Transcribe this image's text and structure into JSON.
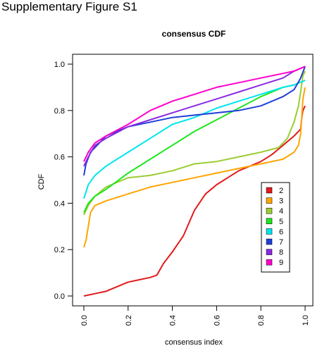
{
  "figure_label": "Supplementary Figure S1",
  "chart_data": {
    "type": "line",
    "title": "consensus CDF",
    "xlabel": "consensus index",
    "ylabel": "CDF",
    "xlim": [
      0.0,
      1.0
    ],
    "ylim": [
      0.0,
      1.0
    ],
    "x_ticks": [
      "0.0",
      "0.2",
      "0.4",
      "0.6",
      "0.8",
      "1.0"
    ],
    "y_ticks": [
      "0.0",
      "0.2",
      "0.4",
      "0.6",
      "0.8",
      "1.0"
    ],
    "grid": false,
    "legend_position": "right",
    "series": [
      {
        "name": "2",
        "color": "#e31a1c",
        "x": [
          0.0,
          0.05,
          0.1,
          0.15,
          0.2,
          0.25,
          0.3,
          0.33,
          0.36,
          0.4,
          0.45,
          0.5,
          0.55,
          0.6,
          0.65,
          0.7,
          0.75,
          0.8,
          0.85,
          0.9,
          0.95,
          0.97,
          0.98,
          0.985,
          0.99,
          1.0
        ],
        "y": [
          0.0,
          0.01,
          0.02,
          0.04,
          0.06,
          0.07,
          0.08,
          0.09,
          0.14,
          0.19,
          0.26,
          0.37,
          0.44,
          0.48,
          0.51,
          0.54,
          0.56,
          0.58,
          0.61,
          0.65,
          0.69,
          0.71,
          0.72,
          0.77,
          0.8,
          0.82
        ]
      },
      {
        "name": "3",
        "color": "#ffa500",
        "x": [
          0.0,
          0.01,
          0.02,
          0.03,
          0.05,
          0.1,
          0.2,
          0.3,
          0.4,
          0.5,
          0.6,
          0.7,
          0.8,
          0.9,
          0.95,
          0.97,
          0.98,
          0.99,
          1.0
        ],
        "y": [
          0.21,
          0.24,
          0.3,
          0.36,
          0.39,
          0.41,
          0.44,
          0.47,
          0.49,
          0.51,
          0.53,
          0.55,
          0.57,
          0.59,
          0.62,
          0.65,
          0.7,
          0.85,
          0.9
        ]
      },
      {
        "name": "4",
        "color": "#9acd32",
        "x": [
          0.0,
          0.02,
          0.05,
          0.1,
          0.15,
          0.2,
          0.3,
          0.4,
          0.5,
          0.6,
          0.7,
          0.8,
          0.88,
          0.92,
          0.95,
          0.97,
          0.98,
          0.99,
          1.0
        ],
        "y": [
          0.35,
          0.39,
          0.43,
          0.47,
          0.49,
          0.51,
          0.52,
          0.54,
          0.57,
          0.58,
          0.6,
          0.62,
          0.64,
          0.68,
          0.75,
          0.82,
          0.88,
          0.95,
          0.97
        ]
      },
      {
        "name": "5",
        "color": "#1ee61e",
        "x": [
          0.0,
          0.02,
          0.05,
          0.1,
          0.2,
          0.3,
          0.4,
          0.5,
          0.6,
          0.7,
          0.8,
          0.9,
          0.95,
          1.0
        ],
        "y": [
          0.36,
          0.4,
          0.43,
          0.46,
          0.53,
          0.59,
          0.65,
          0.71,
          0.76,
          0.81,
          0.86,
          0.9,
          0.91,
          0.93
        ]
      },
      {
        "name": "6",
        "color": "#00e5ee",
        "x": [
          0.0,
          0.02,
          0.05,
          0.1,
          0.2,
          0.3,
          0.4,
          0.5,
          0.6,
          0.7,
          0.8,
          0.9,
          0.95,
          1.0
        ],
        "y": [
          0.42,
          0.48,
          0.52,
          0.56,
          0.62,
          0.68,
          0.74,
          0.77,
          0.81,
          0.84,
          0.87,
          0.9,
          0.91,
          0.93
        ]
      },
      {
        "name": "7",
        "color": "#1f3fd6",
        "x": [
          0.0,
          0.01,
          0.03,
          0.06,
          0.1,
          0.2,
          0.3,
          0.4,
          0.5,
          0.6,
          0.7,
          0.8,
          0.9,
          0.95,
          0.98,
          1.0
        ],
        "y": [
          0.52,
          0.57,
          0.62,
          0.65,
          0.69,
          0.73,
          0.75,
          0.77,
          0.78,
          0.79,
          0.8,
          0.82,
          0.86,
          0.89,
          0.94,
          0.99
        ]
      },
      {
        "name": "8",
        "color": "#8a2be2",
        "x": [
          0.0,
          0.02,
          0.05,
          0.1,
          0.2,
          0.3,
          0.4,
          0.5,
          0.6,
          0.7,
          0.8,
          0.9,
          0.95,
          1.0
        ],
        "y": [
          0.56,
          0.6,
          0.65,
          0.68,
          0.73,
          0.76,
          0.79,
          0.82,
          0.85,
          0.88,
          0.91,
          0.94,
          0.97,
          0.99
        ]
      },
      {
        "name": "9",
        "color": "#ff00cc",
        "x": [
          0.0,
          0.02,
          0.05,
          0.1,
          0.2,
          0.3,
          0.4,
          0.5,
          0.6,
          0.7,
          0.8,
          0.9,
          0.95,
          1.0
        ],
        "y": [
          0.58,
          0.62,
          0.66,
          0.69,
          0.74,
          0.8,
          0.84,
          0.87,
          0.9,
          0.92,
          0.94,
          0.96,
          0.97,
          0.99
        ]
      }
    ]
  }
}
